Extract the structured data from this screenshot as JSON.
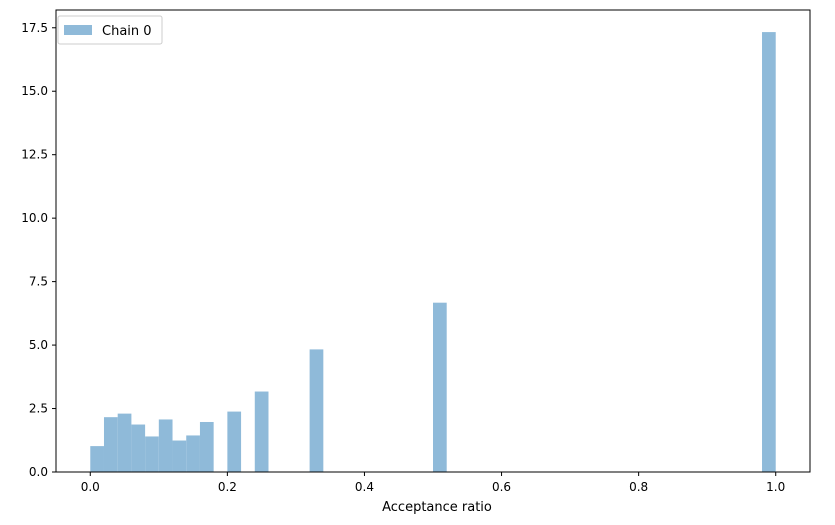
{
  "chart_data": {
    "type": "bar",
    "title": "",
    "xlabel": "Acceptance ratio",
    "ylabel": "",
    "xlim": [
      -0.05,
      1.05
    ],
    "ylim": [
      0,
      18.2
    ],
    "xticks": [
      0.0,
      0.2,
      0.4,
      0.6,
      0.8,
      1.0
    ],
    "xtick_labels": [
      "0.0",
      "0.2",
      "0.4",
      "0.6",
      "0.8",
      "1.0"
    ],
    "yticks": [
      0.0,
      2.5,
      5.0,
      7.5,
      10.0,
      12.5,
      15.0,
      17.5
    ],
    "ytick_labels": [
      "0.0",
      "2.5",
      "5.0",
      "7.5",
      "10.0",
      "12.5",
      "15.0",
      "17.5"
    ],
    "grid": false,
    "legend_position": "top-left",
    "bin_width": 0.02,
    "series": [
      {
        "name": "Chain 0",
        "color": "#8fbad9",
        "bins": [
          {
            "x0": 0.0,
            "x1": 0.02,
            "value": 1.02
          },
          {
            "x0": 0.02,
            "x1": 0.04,
            "value": 2.16
          },
          {
            "x0": 0.04,
            "x1": 0.06,
            "value": 2.3
          },
          {
            "x0": 0.06,
            "x1": 0.08,
            "value": 1.87
          },
          {
            "x0": 0.08,
            "x1": 0.1,
            "value": 1.4
          },
          {
            "x0": 0.1,
            "x1": 0.12,
            "value": 2.07
          },
          {
            "x0": 0.12,
            "x1": 0.14,
            "value": 1.24
          },
          {
            "x0": 0.14,
            "x1": 0.16,
            "value": 1.44
          },
          {
            "x0": 0.16,
            "x1": 0.18,
            "value": 1.97
          },
          {
            "x0": 0.2,
            "x1": 0.22,
            "value": 2.38
          },
          {
            "x0": 0.24,
            "x1": 0.26,
            "value": 3.17
          },
          {
            "x0": 0.32,
            "x1": 0.34,
            "value": 4.83
          },
          {
            "x0": 0.5,
            "x1": 0.52,
            "value": 6.67
          },
          {
            "x0": 0.98,
            "x1": 1.0,
            "value": 17.33
          }
        ]
      }
    ]
  }
}
